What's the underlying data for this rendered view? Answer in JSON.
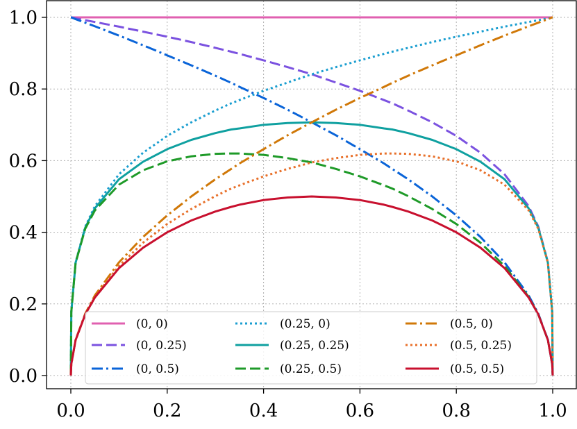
{
  "chart_data": {
    "type": "line",
    "title": "",
    "xlabel": "",
    "ylabel": "",
    "xlim": [
      0.0,
      1.0
    ],
    "ylim": [
      0.0,
      1.0
    ],
    "grid": true,
    "legend_position": "bottom",
    "legend_columns": 3,
    "x_ticks": [
      0.0,
      0.2,
      0.4,
      0.6,
      0.8,
      1.0
    ],
    "x_tick_labels": [
      "0.0",
      "0.2",
      "0.4",
      "0.6",
      "0.8",
      "1.0"
    ],
    "y_ticks": [
      0.0,
      0.2,
      0.4,
      0.6,
      0.8,
      1.0
    ],
    "y_tick_labels": [
      "0.0",
      "0.2",
      "0.4",
      "0.6",
      "0.8",
      "1.0"
    ],
    "x": [
      0.0,
      0.001,
      0.01,
      0.03,
      0.05,
      0.1,
      0.15,
      0.2,
      0.25,
      0.3,
      0.333,
      0.35,
      0.4,
      0.45,
      0.5,
      0.55,
      0.6,
      0.65,
      0.667,
      0.7,
      0.75,
      0.8,
      0.85,
      0.9,
      0.95,
      0.97,
      0.99,
      0.999,
      1.0
    ],
    "series": [
      {
        "name": "(0, 0)",
        "color": "#e060b0",
        "dash": "solid",
        "values": [
          1.0,
          1.0,
          1.0,
          1.0,
          1.0,
          1.0,
          1.0,
          1.0,
          1.0,
          1.0,
          1.0,
          1.0,
          1.0,
          1.0,
          1.0,
          1.0,
          1.0,
          1.0,
          1.0,
          1.0,
          1.0,
          1.0,
          1.0,
          1.0,
          1.0,
          1.0,
          1.0,
          1.0,
          1.0
        ]
      },
      {
        "name": "(0, 0.25)",
        "color": "#7b52e0",
        "dash": "dashed",
        "values": [
          1.0,
          1.0,
          0.997,
          0.992,
          0.987,
          0.974,
          0.96,
          0.946,
          0.931,
          0.915,
          0.904,
          0.898,
          0.88,
          0.861,
          0.841,
          0.818,
          0.795,
          0.769,
          0.76,
          0.74,
          0.707,
          0.669,
          0.622,
          0.562,
          0.473,
          0.416,
          0.316,
          0.178,
          0.0
        ]
      },
      {
        "name": "(0, 0.5)",
        "color": "#0a64d8",
        "dash": "dashdot",
        "values": [
          1.0,
          1.0,
          0.995,
          0.985,
          0.975,
          0.949,
          0.922,
          0.894,
          0.866,
          0.837,
          0.817,
          0.806,
          0.775,
          0.742,
          0.707,
          0.671,
          0.632,
          0.592,
          0.577,
          0.548,
          0.5,
          0.447,
          0.387,
          0.316,
          0.224,
          0.173,
          0.1,
          0.032,
          0.0
        ]
      },
      {
        "name": "(0.25, 0)",
        "color": "#1a9ed0",
        "dash": "dotted",
        "values": [
          0.0,
          0.178,
          0.316,
          0.416,
          0.473,
          0.562,
          0.622,
          0.669,
          0.707,
          0.74,
          0.76,
          0.769,
          0.795,
          0.818,
          0.841,
          0.861,
          0.88,
          0.898,
          0.904,
          0.915,
          0.931,
          0.946,
          0.96,
          0.974,
          0.987,
          0.992,
          0.997,
          1.0,
          1.0
        ]
      },
      {
        "name": "(0.25, 0.25)",
        "color": "#0fa0a0",
        "dash": "solid",
        "values": [
          0.0,
          0.178,
          0.315,
          0.413,
          0.467,
          0.548,
          0.597,
          0.632,
          0.658,
          0.677,
          0.687,
          0.69,
          0.7,
          0.705,
          0.707,
          0.705,
          0.7,
          0.69,
          0.687,
          0.677,
          0.658,
          0.632,
          0.597,
          0.548,
          0.467,
          0.413,
          0.315,
          0.178,
          0.0
        ]
      },
      {
        "name": "(0.25, 0.5)",
        "color": "#1e9a28",
        "dash": "dashed",
        "values": [
          0.0,
          0.178,
          0.315,
          0.41,
          0.461,
          0.533,
          0.573,
          0.598,
          0.612,
          0.619,
          0.62,
          0.62,
          0.616,
          0.607,
          0.595,
          0.577,
          0.556,
          0.531,
          0.522,
          0.501,
          0.465,
          0.423,
          0.371,
          0.306,
          0.22,
          0.171,
          0.099,
          0.032,
          0.0
        ]
      },
      {
        "name": "(0.5, 0)",
        "color": "#d07808",
        "dash": "dashdot",
        "values": [
          0.0,
          0.032,
          0.1,
          0.173,
          0.224,
          0.316,
          0.387,
          0.447,
          0.5,
          0.548,
          0.577,
          0.592,
          0.632,
          0.671,
          0.707,
          0.742,
          0.775,
          0.806,
          0.817,
          0.837,
          0.866,
          0.894,
          0.922,
          0.949,
          0.975,
          0.985,
          0.995,
          1.0,
          1.0
        ]
      },
      {
        "name": "(0.5, 0.25)",
        "color": "#e8702a",
        "dash": "dotted",
        "values": [
          0.0,
          0.032,
          0.099,
          0.171,
          0.22,
          0.306,
          0.371,
          0.423,
          0.465,
          0.501,
          0.522,
          0.531,
          0.556,
          0.577,
          0.595,
          0.607,
          0.616,
          0.62,
          0.62,
          0.619,
          0.612,
          0.598,
          0.573,
          0.533,
          0.461,
          0.41,
          0.315,
          0.178,
          0.0
        ]
      },
      {
        "name": "(0.5, 0.5)",
        "color": "#c8102e",
        "dash": "solid",
        "values": [
          0.0,
          0.032,
          0.099,
          0.171,
          0.218,
          0.3,
          0.357,
          0.4,
          0.433,
          0.458,
          0.471,
          0.477,
          0.49,
          0.497,
          0.5,
          0.497,
          0.49,
          0.477,
          0.471,
          0.458,
          0.433,
          0.4,
          0.357,
          0.3,
          0.218,
          0.171,
          0.099,
          0.032,
          0.0
        ]
      }
    ]
  }
}
